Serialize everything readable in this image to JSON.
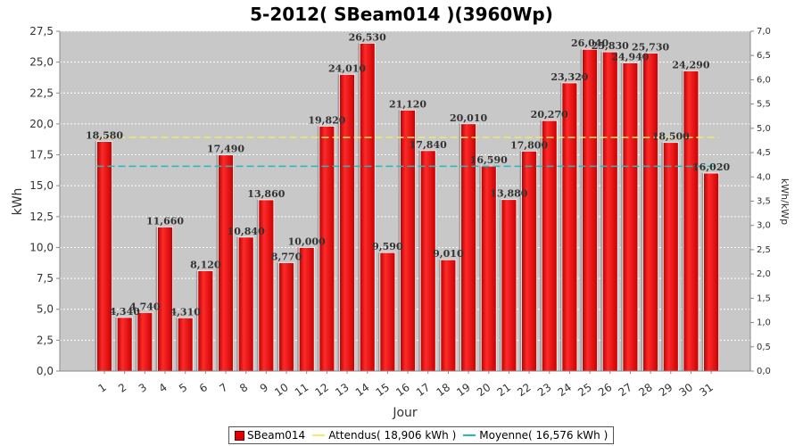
{
  "chart_data": {
    "type": "bar",
    "title": "5-2012( SBeam014 )(3960Wp)",
    "xlabel": "Jour",
    "ylabel": "kWh",
    "ylabel_right": "kWh/kWp",
    "categories": [
      "1",
      "2",
      "3",
      "4",
      "5",
      "6",
      "7",
      "8",
      "9",
      "10",
      "11",
      "12",
      "13",
      "14",
      "15",
      "16",
      "17",
      "18",
      "19",
      "20",
      "21",
      "22",
      "23",
      "24",
      "25",
      "26",
      "27",
      "28",
      "29",
      "30",
      "31"
    ],
    "series": [
      {
        "name": "SBeam014",
        "color": "#e00000",
        "values": [
          18.58,
          4.34,
          4.74,
          11.66,
          4.31,
          8.12,
          17.49,
          10.84,
          13.86,
          8.77,
          10.0,
          19.82,
          24.01,
          26.53,
          9.59,
          21.12,
          17.84,
          9.01,
          20.01,
          16.59,
          13.88,
          17.8,
          20.27,
          23.32,
          26.04,
          25.83,
          24.94,
          25.73,
          18.5,
          24.29,
          16.02
        ],
        "labels": [
          "18,580",
          "4,340",
          "4,740",
          "11,660",
          "4,310",
          "8,120",
          "17,490",
          "10,840",
          "13,860",
          "8,770",
          "10,000",
          "19,820",
          "24,010",
          "26,530",
          "9,590",
          "21,120",
          "17,840",
          "9,010",
          "20,010",
          "16,590",
          "13,880",
          "17,800",
          "20,270",
          "23,320",
          "26,040",
          "25,830",
          "24,940",
          "25,730",
          "18,500",
          "24,290",
          "16,020"
        ]
      }
    ],
    "reference_lines": [
      {
        "name": "Attendus",
        "legend": "Attendus( 18,906 kWh )",
        "value": 18.906,
        "color": "#f2e86a",
        "style": "dashed"
      },
      {
        "name": "Moyenne",
        "legend": "Moyenne( 16,576 kWh )",
        "value": 16.576,
        "color": "#22bbbb",
        "style": "dashed"
      }
    ],
    "ylim": [
      0,
      27.5
    ],
    "y_ticks": [
      "0,0",
      "2,5",
      "5,0",
      "7,5",
      "10,0",
      "12,5",
      "15,0",
      "17,5",
      "20,0",
      "22,5",
      "25,0",
      "27,5"
    ],
    "y_right_lim": [
      0,
      7.0
    ],
    "y_right_ticks": [
      "0,0",
      "0,5",
      "1,0",
      "1,5",
      "2,0",
      "2,5",
      "3,0",
      "3,5",
      "4,0",
      "4,5",
      "5,0",
      "5,5",
      "6,0",
      "6,5",
      "7,0"
    ],
    "grid": true,
    "legend_position": "bottom",
    "plot_background": "#c8c8c8"
  }
}
